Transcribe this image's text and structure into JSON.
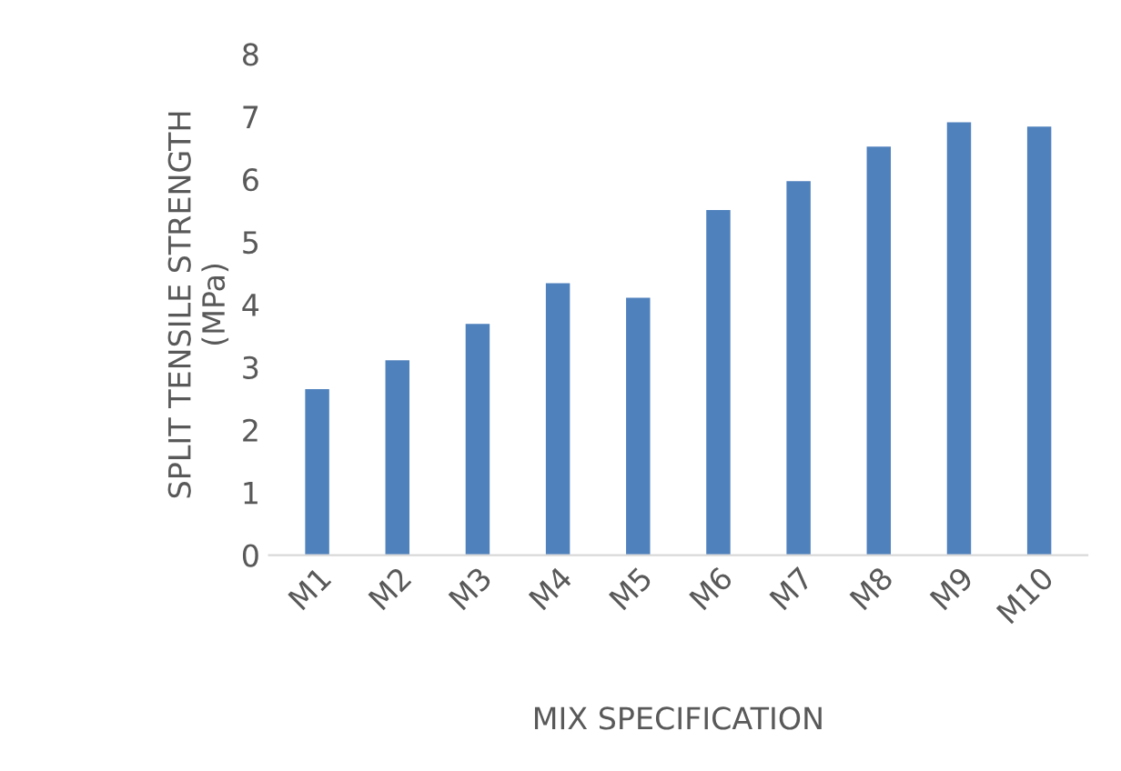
{
  "chart_data": {
    "type": "bar",
    "xlabel": "MIX SPECIFICATION",
    "ylabel": "SPLIT TENSILE STRENGTH\n(MPa)",
    "categories": [
      "M1",
      "M2",
      "M3",
      "M4",
      "M5",
      "M6",
      "M7",
      "M8",
      "M9",
      "M10"
    ],
    "values": [
      2.65,
      3.11,
      3.69,
      4.34,
      4.11,
      5.51,
      5.97,
      6.52,
      6.91,
      6.84
    ],
    "color": "#4f81bd",
    "ylim": [
      0,
      8
    ],
    "yticks": [
      0,
      1,
      2,
      3,
      4,
      5,
      6,
      7,
      8
    ],
    "grid": false
  }
}
